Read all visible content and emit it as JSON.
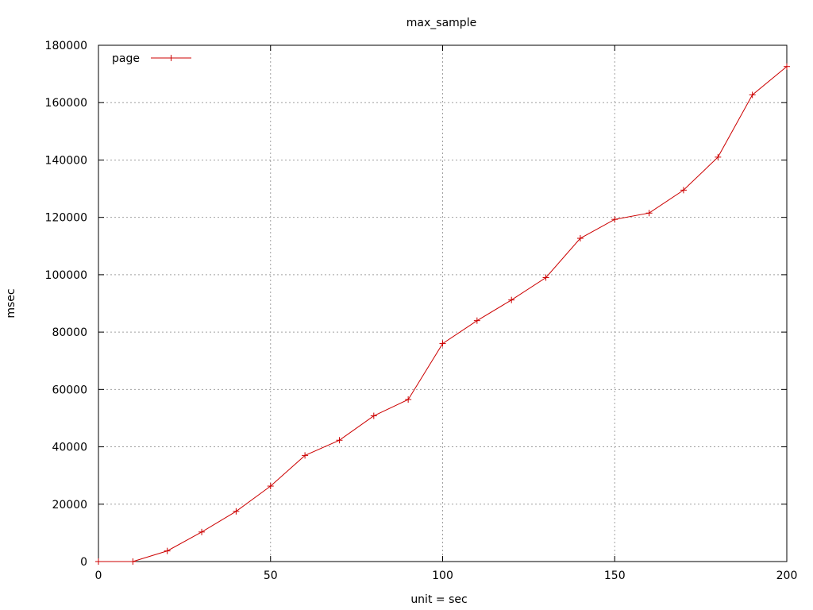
{
  "chart_data": {
    "type": "line",
    "title": "max_sample",
    "xlabel": "unit = sec",
    "ylabel": "msec",
    "xlim": [
      0,
      200
    ],
    "ylim": [
      0,
      180000
    ],
    "x_ticks": [
      0,
      50,
      100,
      150,
      200
    ],
    "y_ticks": [
      0,
      20000,
      40000,
      60000,
      80000,
      100000,
      120000,
      140000,
      160000,
      180000
    ],
    "grid": true,
    "legend_position": "top-left",
    "series": [
      {
        "name": "page",
        "color": "#cc0000",
        "marker": "plus",
        "x": [
          0,
          10,
          20,
          30,
          40,
          50,
          60,
          70,
          80,
          90,
          100,
          110,
          120,
          130,
          140,
          150,
          160,
          170,
          180,
          190,
          200
        ],
        "y": [
          0,
          0,
          3700,
          10300,
          17500,
          26300,
          37000,
          42300,
          50800,
          56500,
          76000,
          84000,
          91200,
          99000,
          112700,
          119300,
          121500,
          129500,
          141000,
          162700,
          172600
        ]
      }
    ]
  }
}
